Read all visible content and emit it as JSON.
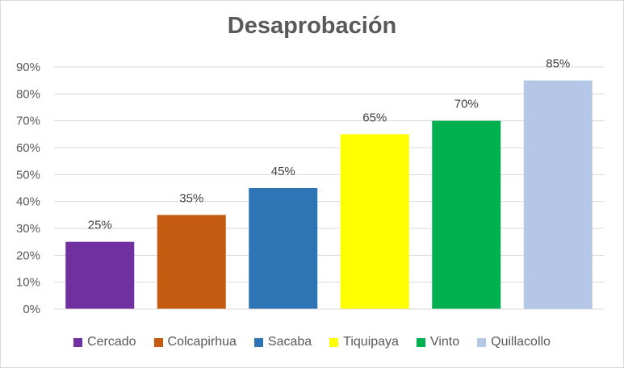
{
  "chart_data": {
    "type": "bar",
    "title": "Desaprobación",
    "categories": [
      "Cercado",
      "Colcapirhua",
      "Sacaba",
      "Tiquipaya",
      "Vinto",
      "Quillacollo"
    ],
    "values": [
      25,
      35,
      45,
      65,
      70,
      85
    ],
    "data_labels": [
      "25%",
      "35%",
      "45%",
      "65%",
      "70%",
      "85%"
    ],
    "colors": [
      "#7030a0",
      "#c55a11",
      "#2e75b6",
      "#ffff00",
      "#00b050",
      "#b4c7e7"
    ],
    "ylim": [
      0,
      90
    ],
    "yticks": [
      0,
      10,
      20,
      30,
      40,
      50,
      60,
      70,
      80,
      90
    ],
    "ytick_labels": [
      "0%",
      "10%",
      "20%",
      "30%",
      "40%",
      "50%",
      "60%",
      "70%",
      "80%",
      "90%"
    ],
    "grid": true,
    "legend_position": "bottom"
  }
}
